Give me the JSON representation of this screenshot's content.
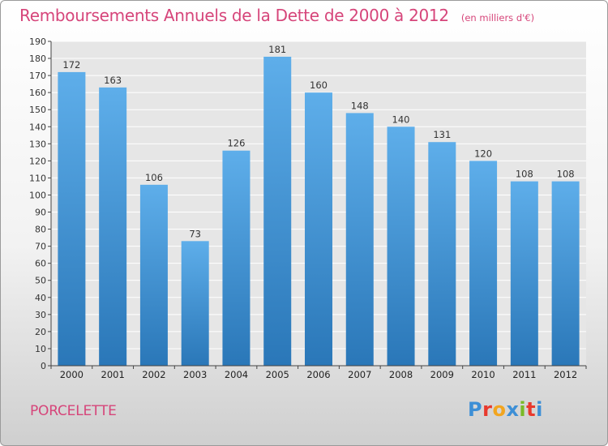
{
  "header": {
    "title": "Remboursements Annuels de la Dette de 2000 à 2012",
    "unit": "(en milliers d'€)"
  },
  "footer": {
    "commune": "PORCELETTE",
    "logo": "Proxiti",
    "logo_colors": [
      "#3d8fd6",
      "#e8392d",
      "#f2a51f",
      "#3d8fd6",
      "#7ab928",
      "#e8392d",
      "#3d8fd6"
    ]
  },
  "colors": {
    "bar_top": "#5eaeea",
    "bar_bottom": "#2a77b8",
    "title": "#d6457a",
    "grid": "#ffffff"
  },
  "chart_data": {
    "type": "bar",
    "categories": [
      "2000",
      "2001",
      "2002",
      "2003",
      "2004",
      "2005",
      "2006",
      "2007",
      "2008",
      "2009",
      "2010",
      "2011",
      "2012"
    ],
    "values": [
      172,
      163,
      106,
      73,
      126,
      181,
      160,
      148,
      140,
      131,
      120,
      108,
      108
    ],
    "ylim": [
      0,
      190
    ],
    "ytick_step": 10,
    "grid": true,
    "data_labels": true
  }
}
